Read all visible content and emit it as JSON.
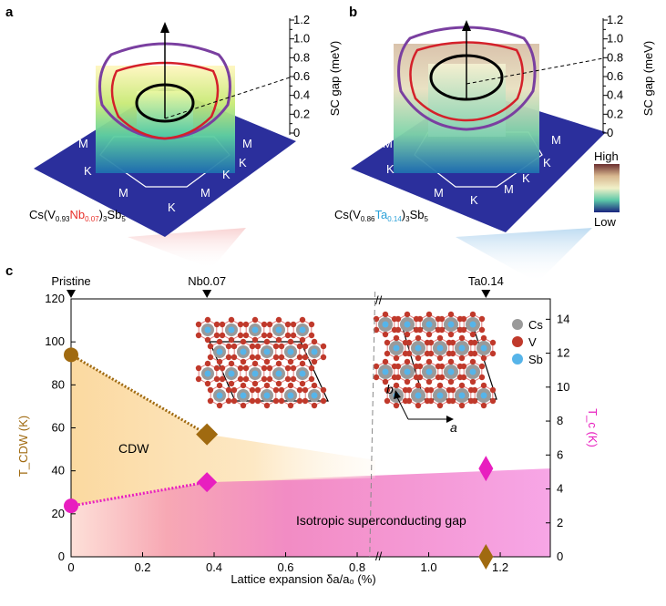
{
  "panel_a": {
    "label": "a",
    "formula": {
      "p1": "Cs(V",
      "s1": "0.93",
      "p2": "Nb",
      "s2": "0.07",
      "p3": ")",
      "s3": "3",
      "p4": "Sb",
      "s4": "5"
    },
    "bz_labels": [
      "M",
      "M",
      "M",
      "M",
      "K",
      "K",
      "K",
      "K"
    ],
    "axis_title": "SC gap (meV)",
    "axis_ticks": [
      "1.2",
      "1.0",
      "0.8",
      "0.6",
      "0.4",
      "0.2",
      "0"
    ]
  },
  "panel_b": {
    "label": "b",
    "formula": {
      "p1": "Cs(V",
      "s1": "0.86",
      "p2": "Ta",
      "s2": "0.14",
      "p3": ")",
      "s3": "3",
      "p4": "Sb",
      "s4": "5"
    },
    "bz_labels": [
      "M",
      "M",
      "M",
      "M",
      "K",
      "K",
      "K",
      "K"
    ],
    "axis_title": "SC gap (meV)",
    "axis_ticks": [
      "1.2",
      "1.0",
      "0.8",
      "0.6",
      "0.4",
      "0.2",
      "0"
    ],
    "colorbar": {
      "high": "High",
      "low": "Low"
    }
  },
  "panel_c": {
    "label": "c",
    "top_markers": [
      "Pristine",
      "Nb0.07",
      "Ta0.14"
    ],
    "legend": [
      {
        "label": "Cs",
        "color": "#9a9a9a"
      },
      {
        "label": "V",
        "color": "#c0392b"
      },
      {
        "label": "Sb",
        "color": "#56b4e9"
      }
    ],
    "lattice_vectors": {
      "a": "a",
      "b": "b"
    },
    "region_labels": {
      "cdw": "CDW",
      "sc": "Isotropic superconducting gap"
    }
  },
  "colors": {
    "cdw": "#a06a10",
    "sc": "#e81fbf",
    "nb": "#e8302a",
    "ta": "#2aa0d8"
  },
  "chart_data": {
    "type": "scatter",
    "xlabel": "Lattice expansion δa/a₀ (%)",
    "ylabel_left": "T_CDW (K)",
    "ylabel_right": "T_c (K)",
    "x_ticks": [
      "0",
      "0.2",
      "0.4",
      "0.6",
      "0.8",
      "1.0",
      "1.2"
    ],
    "y_left_ticks": [
      "0",
      "20",
      "40",
      "60",
      "80",
      "100",
      "120"
    ],
    "y_right_ticks": [
      "0",
      "2",
      "4",
      "6",
      "8",
      "10",
      "12",
      "14"
    ],
    "xlim": [
      0,
      1.34
    ],
    "ylim_left": [
      0,
      120
    ],
    "ylim_right": [
      0,
      15.2
    ],
    "series": [
      {
        "name": "T_CDW",
        "axis": "left",
        "points": [
          {
            "x": 0,
            "y": 94
          },
          {
            "x": 0.38,
            "y": 57
          },
          {
            "x": 1.16,
            "y": 0
          }
        ]
      },
      {
        "name": "T_c",
        "axis": "right",
        "points": [
          {
            "x": 0,
            "y": 3.0
          },
          {
            "x": 0.38,
            "y": 4.4
          },
          {
            "x": 1.16,
            "y": 5.2
          }
        ]
      }
    ]
  }
}
